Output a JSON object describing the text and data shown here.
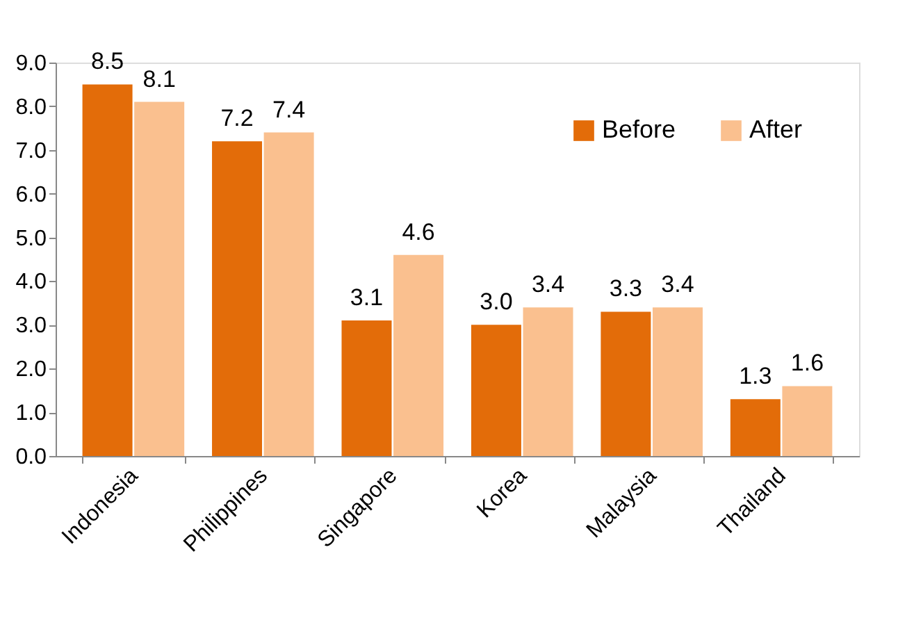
{
  "chart_data": {
    "type": "bar",
    "categories": [
      "Indonesia",
      "Philippines",
      "Singapore",
      "Korea",
      "Malaysia",
      "Thailand"
    ],
    "series": [
      {
        "name": "Before",
        "color": "#e36c09",
        "values": [
          8.5,
          7.2,
          3.1,
          3.0,
          3.3,
          1.3
        ],
        "value_labels": [
          "8.5",
          "7.2",
          "3.1",
          "3.0",
          "3.3",
          "1.3"
        ]
      },
      {
        "name": "After",
        "color": "#fac08f",
        "values": [
          8.1,
          7.4,
          4.6,
          3.4,
          3.4,
          1.6
        ],
        "value_labels": [
          "8.1",
          "7.4",
          "4.6",
          "3.4",
          "3.4",
          "1.6"
        ]
      }
    ],
    "ylim": [
      0,
      9
    ],
    "yticks": [
      {
        "value": 0,
        "label": "0.0"
      },
      {
        "value": 1,
        "label": "1.0"
      },
      {
        "value": 2,
        "label": "2.0"
      },
      {
        "value": 3,
        "label": "3.0"
      },
      {
        "value": 4,
        "label": "4.0"
      },
      {
        "value": 5,
        "label": "5.0"
      },
      {
        "value": 6,
        "label": "6.0"
      },
      {
        "value": 7,
        "label": "7.0"
      },
      {
        "value": 8,
        "label": "8.0"
      },
      {
        "value": 9,
        "label": "9.0"
      }
    ],
    "grid": false,
    "legend": "top right"
  }
}
